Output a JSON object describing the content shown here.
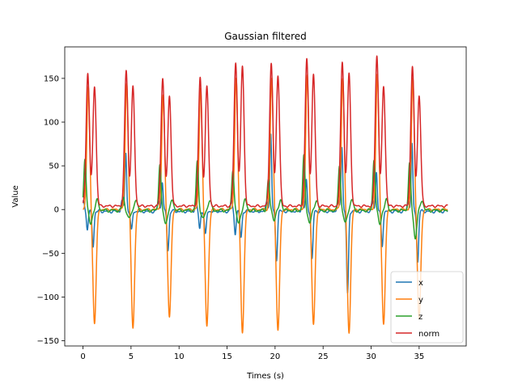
{
  "chart_data": {
    "type": "line",
    "title": "Gaussian filtered",
    "xlabel": "Times (s)",
    "ylabel": "Value",
    "xlim": [
      -1.9,
      39.9
    ],
    "ylim": [
      -156,
      186
    ],
    "xticks": [
      0,
      5,
      10,
      15,
      20,
      25,
      30,
      35
    ],
    "yticks": [
      -150,
      -100,
      -50,
      0,
      50,
      100,
      150
    ],
    "xtick_labels": [
      "0",
      "5",
      "10",
      "15",
      "20",
      "25",
      "30",
      "35"
    ],
    "ytick_labels": [
      "−150",
      "−100",
      "−50",
      "0",
      "50",
      "100",
      "150"
    ],
    "grid": false,
    "legend_position": "lower-right",
    "duration": 38,
    "series": [
      {
        "name": "x",
        "color": "#1f77b4"
      },
      {
        "name": "y",
        "color": "#ff7f0e"
      },
      {
        "name": "z",
        "color": "#2ca02c"
      },
      {
        "name": "norm",
        "color": "#d62728"
      }
    ],
    "events": [
      {
        "t": 0.5,
        "norm": [
          152,
          137
        ],
        "x": [
          -20,
          -40
        ],
        "y": [
          140,
          -130
        ],
        "z": [
          60,
          -15
        ]
      },
      {
        "t": 4.5,
        "norm": [
          155,
          136
        ],
        "x": [
          67,
          -22
        ],
        "y": [
          145,
          -135
        ],
        "z": [
          15,
          -10
        ]
      },
      {
        "t": 8.3,
        "norm": [
          147,
          126
        ],
        "x": [
          34,
          -45
        ],
        "y": [
          130,
          -122
        ],
        "z": [
          53,
          -15
        ]
      },
      {
        "t": 12.2,
        "norm": [
          147,
          136
        ],
        "x": [
          -20,
          -27
        ],
        "y": [
          140,
          -133
        ],
        "z": [
          56,
          -10
        ]
      },
      {
        "t": 15.9,
        "norm": [
          164,
          160
        ],
        "x": [
          -25,
          -30
        ],
        "y": [
          150,
          -140
        ],
        "z": [
          47,
          -15
        ]
      },
      {
        "t": 19.6,
        "norm": [
          163,
          150
        ],
        "x": [
          88,
          -55
        ],
        "y": [
          150,
          -139
        ],
        "z": [
          35,
          -10
        ]
      },
      {
        "t": 23.3,
        "norm": [
          168,
          150
        ],
        "x": [
          35,
          -55
        ],
        "y": [
          155,
          -132
        ],
        "z": [
          62,
          -15
        ]
      },
      {
        "t": 27.0,
        "norm": [
          165,
          151
        ],
        "x": [
          75,
          -95
        ],
        "y": [
          150,
          -140
        ],
        "z": [
          52,
          -15
        ]
      },
      {
        "t": 30.6,
        "norm": [
          172,
          137
        ],
        "x": [
          45,
          -40
        ],
        "y": [
          155,
          -131
        ],
        "z": [
          58,
          -15
        ]
      },
      {
        "t": 34.3,
        "norm": [
          160,
          126
        ],
        "x": [
          77,
          -58
        ],
        "y": [
          150,
          -125
        ],
        "z": [
          53,
          -32
        ]
      }
    ]
  }
}
